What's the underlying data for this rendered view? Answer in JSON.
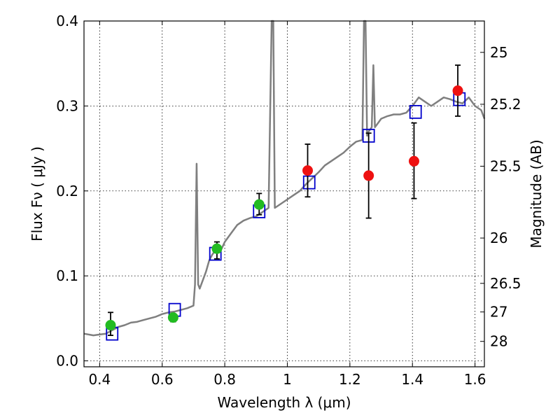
{
  "chart_data": {
    "type": "scatter",
    "xlabel": "Wavelength  λ (μm)",
    "ylabel": "Flux  Fν  ( μJy )",
    "y2label": "Magnitude (AB)",
    "xlim": [
      0.35,
      1.63
    ],
    "ylim": [
      -0.007,
      0.4
    ],
    "x_ticks": [
      0.4,
      0.6,
      0.8,
      1.0,
      1.2,
      1.4,
      1.6
    ],
    "x_tick_labels": [
      "0.4",
      "0.6",
      "0.8",
      "1",
      "1.2",
      "1.4",
      "1.6"
    ],
    "y_ticks": [
      0.0,
      0.1,
      0.2,
      0.3,
      0.4
    ],
    "y_tick_labels": [
      "0.0",
      "0.1",
      "0.2",
      "0.3",
      "0.4"
    ],
    "magnitude_ticks": [
      25,
      25.2,
      25.5,
      26,
      26.5,
      27,
      28
    ],
    "magnitude_tick_labels": [
      "25",
      "25.2",
      "25.5",
      "26",
      "26.5",
      "27",
      "28"
    ],
    "grid": true,
    "colors": {
      "spectrum": "#7f7f7f",
      "model": "#0000cc",
      "optical": "#22bb22",
      "nir": "#ee1111",
      "error": "#000000"
    },
    "series": [
      {
        "kind": "spectrum",
        "x": [
          0.35,
          0.38,
          0.4,
          0.42,
          0.44,
          0.46,
          0.48,
          0.5,
          0.52,
          0.54,
          0.56,
          0.58,
          0.6,
          0.62,
          0.64,
          0.66,
          0.68,
          0.7,
          0.705,
          0.71,
          0.715,
          0.72,
          0.73,
          0.74,
          0.75,
          0.76,
          0.77,
          0.78,
          0.79,
          0.8,
          0.82,
          0.84,
          0.86,
          0.88,
          0.9,
          0.92,
          0.94,
          0.95,
          0.955,
          0.96,
          0.98,
          1.0,
          1.02,
          1.04,
          1.06,
          1.08,
          1.1,
          1.12,
          1.14,
          1.16,
          1.18,
          1.2,
          1.22,
          1.24,
          1.245,
          1.25,
          1.255,
          1.26,
          1.27,
          1.275,
          1.28,
          1.29,
          1.3,
          1.32,
          1.34,
          1.36,
          1.38,
          1.4,
          1.42,
          1.44,
          1.46,
          1.48,
          1.5,
          1.52,
          1.54,
          1.56,
          1.58,
          1.6,
          1.62,
          1.63
        ],
        "y": [
          0.032,
          0.03,
          0.031,
          0.032,
          0.036,
          0.04,
          0.042,
          0.045,
          0.046,
          0.048,
          0.05,
          0.052,
          0.055,
          0.057,
          0.058,
          0.06,
          0.062,
          0.065,
          0.09,
          0.232,
          0.09,
          0.085,
          0.095,
          0.105,
          0.118,
          0.125,
          0.13,
          0.135,
          0.132,
          0.14,
          0.15,
          0.16,
          0.165,
          0.168,
          0.17,
          0.175,
          0.18,
          0.4,
          0.4,
          0.18,
          0.185,
          0.19,
          0.195,
          0.2,
          0.208,
          0.215,
          0.222,
          0.23,
          0.235,
          0.24,
          0.245,
          0.252,
          0.258,
          0.26,
          0.4,
          0.4,
          0.265,
          0.27,
          0.275,
          0.348,
          0.275,
          0.28,
          0.285,
          0.288,
          0.29,
          0.29,
          0.292,
          0.3,
          0.31,
          0.305,
          0.3,
          0.305,
          0.31,
          0.308,
          0.305,
          0.303,
          0.31,
          0.3,
          0.295,
          0.285
        ]
      },
      {
        "kind": "model",
        "x": [
          0.44,
          0.64,
          0.77,
          0.91,
          1.07,
          1.26,
          1.41,
          1.55
        ],
        "y": [
          0.032,
          0.06,
          0.126,
          0.176,
          0.21,
          0.265,
          0.293,
          0.308
        ]
      },
      {
        "kind": "optical",
        "x": [
          0.435,
          0.635,
          0.775,
          0.91
        ],
        "y": [
          0.042,
          0.051,
          0.132,
          0.184
        ],
        "yerr_low": [
          0.03,
          0.046,
          0.12,
          0.172
        ],
        "yerr_high": [
          0.057,
          0.055,
          0.14,
          0.197
        ]
      },
      {
        "kind": "nir",
        "x": [
          1.065,
          1.26,
          1.405,
          1.545
        ],
        "y": [
          0.224,
          0.218,
          0.235,
          0.318
        ],
        "yerr_low": [
          0.193,
          0.168,
          0.191,
          0.288
        ],
        "yerr_high": [
          0.255,
          0.268,
          0.28,
          0.348
        ]
      }
    ]
  }
}
